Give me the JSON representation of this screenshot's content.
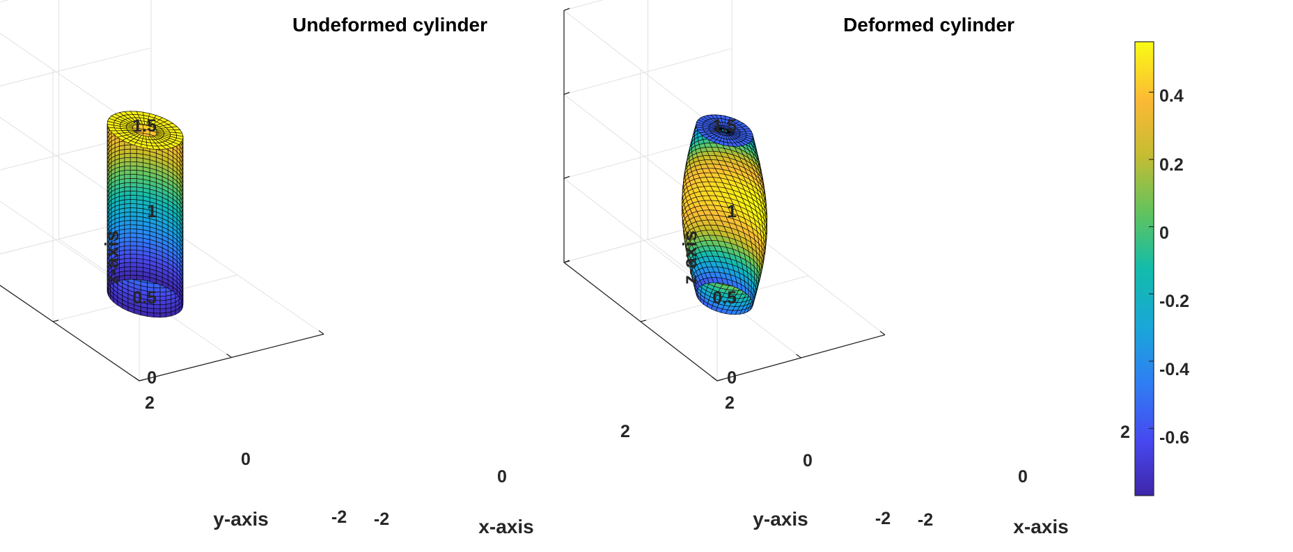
{
  "chart_data": [
    {
      "type": "surface",
      "title": "Undeformed cylinder",
      "xlabel": "x-axis",
      "ylabel": "y-axis",
      "zlabel": "z-axis",
      "xticks": [
        "-2",
        "0",
        "2"
      ],
      "yticks": [
        "-2",
        "0",
        "2"
      ],
      "zticks": [
        "0",
        "0.5",
        "1",
        "1.5"
      ],
      "xlim": [
        -2,
        2
      ],
      "ylim": [
        -2,
        2
      ],
      "zlim": [
        0,
        1.5
      ],
      "view": "3d-default",
      "grid": true,
      "shape": {
        "outer_radius": 0.6,
        "inner_radius": 0.2,
        "height": 1.0,
        "deformed": false
      },
      "color_range": [
        -0.8,
        0.55
      ]
    },
    {
      "type": "surface",
      "title": "Deformed cylinder",
      "xlabel": "x-axis",
      "ylabel": "y-axis",
      "zlabel": "z-axis",
      "xticks": [
        "-2",
        "0",
        "2"
      ],
      "yticks": [
        "-2",
        "0",
        "2"
      ],
      "zticks": [
        "0",
        "0.5",
        "1",
        "1.5"
      ],
      "xlim": [
        -2,
        2
      ],
      "ylim": [
        -2,
        2
      ],
      "zlim": [
        0,
        1.5
      ],
      "view": "3d-default",
      "grid": true,
      "shape": {
        "end_radius": 0.5,
        "mid_radius": 0.75,
        "inner_radius": 0.05,
        "height": 1.0,
        "deformed": true,
        "twist": true
      },
      "color_range": [
        -0.8,
        0.55
      ]
    }
  ],
  "colorbar": {
    "colormap": "parula",
    "range": [
      -0.8,
      0.55
    ],
    "ticks": [
      "-0.6",
      "-0.4",
      "-0.2",
      "0",
      "0.2",
      "0.4"
    ],
    "placement": "right"
  }
}
